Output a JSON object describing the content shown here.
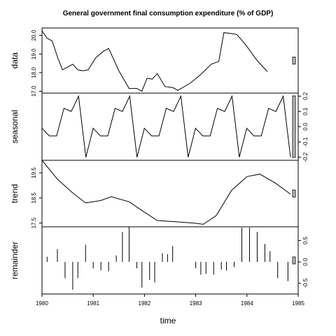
{
  "chart_data": {
    "type": "line",
    "title": "General government final consumption expenditure (% of GDP)",
    "xlabel": "time",
    "x": [
      1980.0,
      1980.0833,
      1980.1667,
      1980.25,
      1980.3333,
      1980.4167,
      1980.5,
      1980.5833,
      1980.6667,
      1980.75,
      1980.8333,
      1980.9167,
      1981.0,
      1981.0833,
      1981.1667,
      1981.25,
      1981.3333,
      1981.4167,
      1981.5,
      1981.5833,
      1981.6667,
      1981.75,
      1981.8333,
      1981.9167,
      1982.0,
      1982.0833,
      1982.1667,
      1982.25,
      1982.3333,
      1982.4167,
      1982.5,
      1982.5833,
      1982.6667,
      1982.75,
      1982.8333,
      1982.9167,
      1983.0,
      1983.0833,
      1983.1667,
      1983.25,
      1983.3333,
      1983.4167,
      1983.5,
      1983.5833,
      1983.6667,
      1983.75,
      1983.8333,
      1983.9167,
      1984.0,
      1984.0833,
      1984.1667,
      1984.25,
      1984.3333,
      1984.4167,
      1984.5,
      1984.5833,
      1984.6667,
      1984.75,
      1984.8333,
      1984.9167
    ],
    "xlim": [
      1980,
      1985
    ],
    "xticks": [
      "1980",
      "1981",
      "1982",
      "1983",
      "1984",
      "1985"
    ],
    "xtick_values": [
      1980,
      1981,
      1982,
      1983,
      1984,
      1985
    ],
    "panels": [
      {
        "name": "data",
        "ylim": [
          16.9,
          20.4
        ],
        "yticks": [
          17.0,
          18.0,
          19.0,
          20.0
        ],
        "ytick_labels": [
          "17.0",
          "18.0",
          "19.0",
          "20.0"
        ],
        "axis_side": "left",
        "kind": "line",
        "values": [
          20.25,
          19.85,
          19.7,
          18.85,
          18.15,
          18.3,
          18.45,
          18.15,
          18.1,
          18.15,
          18.8,
          19.15,
          19.3,
          18.1,
          17.15,
          17.15,
          17.0,
          17.7,
          17.65,
          17.95,
          17.25,
          17.2,
          17.05,
          17.2,
          17.45,
          17.9,
          18.45,
          18.6,
          20.15,
          20.1,
          20.05,
          19.75,
          19.4,
          18.65,
          18.05
        ],
        "values_x": [
          1980.0,
          1980.1,
          1980.2,
          1980.3,
          1980.4,
          1980.5,
          1980.6,
          1980.7,
          1980.8,
          1980.9,
          1981.05,
          1981.2,
          1981.3,
          1981.5,
          1981.7,
          1981.85,
          1981.95,
          1982.05,
          1982.15,
          1982.25,
          1982.4,
          1982.55,
          1982.65,
          1982.75,
          1982.9,
          1983.1,
          1983.3,
          1983.45,
          1983.55,
          1983.7,
          1983.8,
          1983.9,
          1984.0,
          1984.2,
          1984.4
        ]
      },
      {
        "name": "seasonal",
        "ylim": [
          -0.22,
          0.22
        ],
        "yticks": [
          -0.2,
          -0.1,
          0.0,
          0.1,
          0.2
        ],
        "ytick_labels": [
          "-0.2",
          "-0.1",
          "0.0",
          "0.1",
          "0.2"
        ],
        "axis_side": "right",
        "kind": "line",
        "cycle": [
          -0.01,
          -0.06,
          -0.06,
          0.12,
          0.1,
          0.2,
          -0.2
        ],
        "values": [
          -0.01,
          -0.06,
          -0.06,
          0.12,
          0.1,
          0.2,
          -0.2,
          -0.01,
          -0.06,
          -0.06,
          0.12,
          0.1,
          0.2,
          -0.2,
          -0.01,
          -0.06,
          -0.06,
          0.12,
          0.1,
          0.2,
          -0.2,
          -0.01,
          -0.06,
          -0.06,
          0.12,
          0.1,
          0.2,
          -0.2,
          -0.01,
          -0.06,
          -0.06,
          0.12,
          0.1,
          0.2,
          -0.2
        ]
      },
      {
        "name": "trend",
        "ylim": [
          17.35,
          20.0
        ],
        "yticks": [
          17.5,
          18.5,
          19.5
        ],
        "ytick_labels": [
          "17.5",
          "18.5",
          "19.5"
        ],
        "axis_side": "left",
        "kind": "line",
        "values": [
          20.0,
          19.25,
          18.7,
          18.3,
          18.35,
          18.4,
          18.55,
          18.35,
          18.0,
          17.6,
          17.55,
          17.5,
          17.45,
          17.8,
          18.8,
          19.35,
          19.45,
          19.1,
          18.65
        ],
        "values_x": [
          1980.0,
          1980.3,
          1980.6,
          1980.85,
          1981.0,
          1981.15,
          1981.35,
          1981.7,
          1981.95,
          1982.25,
          1982.6,
          1982.95,
          1983.15,
          1983.4,
          1983.7,
          1984.0,
          1984.25,
          1984.55,
          1984.85
        ]
      },
      {
        "name": "remainder",
        "ylim": [
          -0.75,
          0.82
        ],
        "yticks": [
          -0.5,
          0.0,
          0.5
        ],
        "ytick_labels": [
          "-0.5",
          "0.0",
          "0.5"
        ],
        "axis_side": "right",
        "kind": "bars",
        "values": [
          0.18,
          0.12,
          0.3,
          -0.38,
          -0.65,
          -0.38,
          0.4,
          -0.15,
          -0.2,
          -0.22,
          0.15,
          0.7,
          0.82,
          -0.15,
          -0.6,
          -0.42,
          -0.48,
          0.2,
          0.18,
          0.37,
          0.0,
          -0.15,
          -0.3,
          -0.28,
          -0.3,
          -0.18,
          -0.2,
          -0.12,
          0.8,
          0.8,
          0.7,
          0.42,
          0.25,
          -0.38,
          -0.45
        ],
        "values_x": [
          1980.0,
          1980.1,
          1980.3,
          1980.45,
          1980.6,
          1980.7,
          1980.85,
          1981.0,
          1981.15,
          1981.3,
          1981.45,
          1981.57,
          1981.7,
          1981.85,
          1981.95,
          1982.1,
          1982.2,
          1982.35,
          1982.45,
          1982.55,
          1982.8,
          1983.0,
          1983.1,
          1983.2,
          1983.35,
          1983.5,
          1983.6,
          1983.75,
          1983.9,
          1984.05,
          1984.2,
          1984.35,
          1984.45,
          1984.6,
          1984.8
        ]
      }
    ]
  }
}
